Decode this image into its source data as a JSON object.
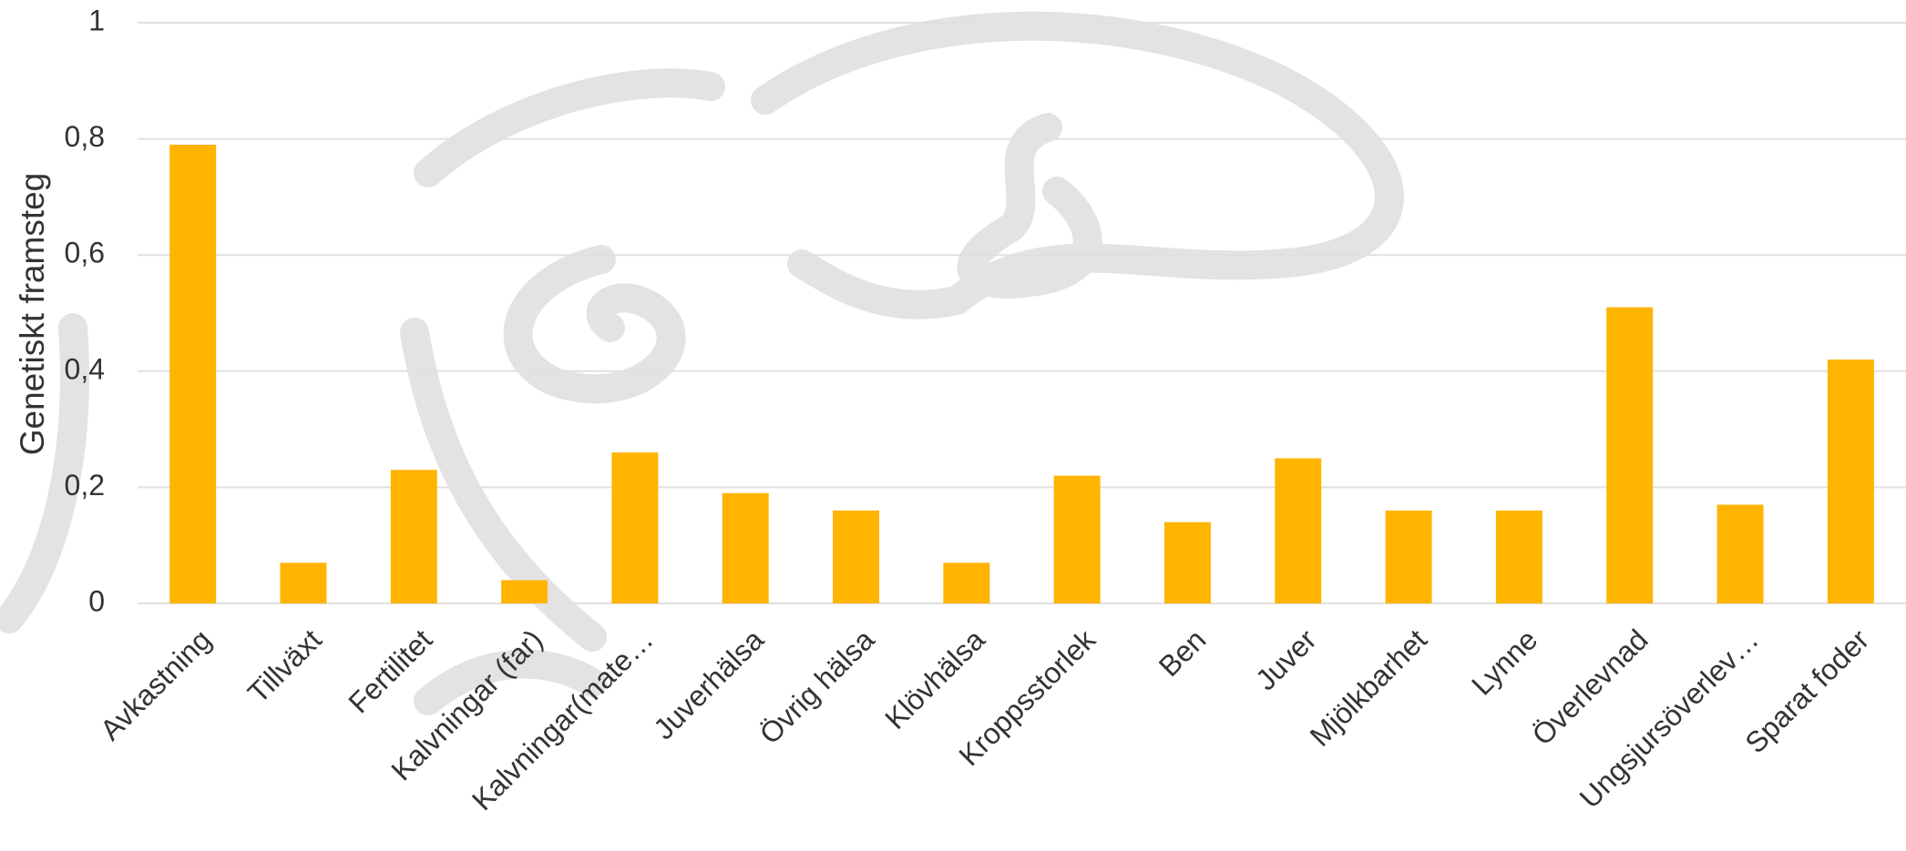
{
  "chart_data": {
    "type": "bar",
    "y_label": "Genetiskt framsteg",
    "categories": [
      "Avkastning",
      "Tillväxt",
      "Fertilitet",
      "Kalvningar (far)",
      "Kalvningar(mate…",
      "Juverhälsa",
      "Övrig hälsa",
      "Klövhälsa",
      "Kroppsstorlek",
      "Ben",
      "Juver",
      "Mjölkbarhet",
      "Lynne",
      "Överlevnad",
      "Ungsjursöverlev…",
      "Sparat foder"
    ],
    "values": [
      0.79,
      0.07,
      0.23,
      0.04,
      0.26,
      0.19,
      0.16,
      0.07,
      0.22,
      0.14,
      0.25,
      0.16,
      0.16,
      0.51,
      0.17,
      0.42
    ],
    "color": "#ffb400",
    "ylim": [
      0,
      1
    ],
    "yticks": [
      0,
      {
        "value": 0.2,
        "label": "0,2"
      },
      {
        "value": 0.4,
        "label": "0,4"
      },
      {
        "value": 0.6,
        "label": "0,6"
      },
      {
        "value": 0.8,
        "label": "0,8"
      },
      1
    ],
    "grid": true
  }
}
